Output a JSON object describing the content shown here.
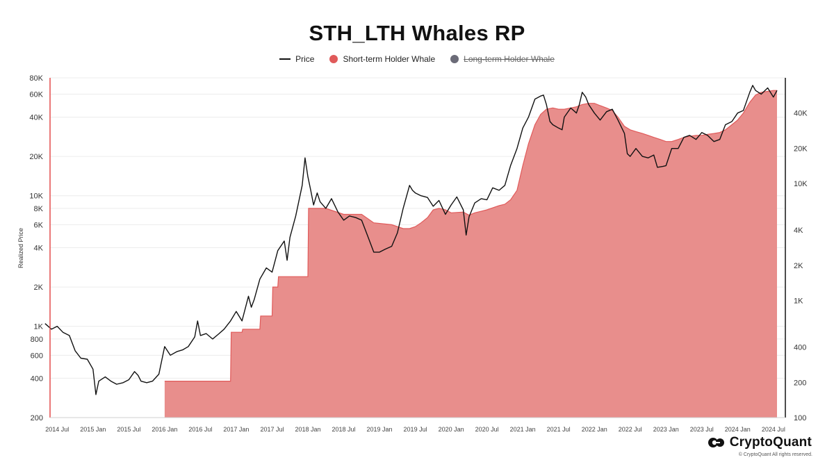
{
  "chart_data": {
    "type": "area",
    "title": "STH_LTH Whales RP",
    "ylabel": "Realized Price",
    "yscale": "log",
    "ylim_left": [
      200,
      80000
    ],
    "ylim_right": [
      100,
      80000
    ],
    "grid": true,
    "legend_position": "top-center",
    "left_ticks": [
      "80K",
      "60K",
      "40K",
      "20K",
      "10K",
      "8K",
      "6K",
      "4K",
      "2K",
      "1K",
      "800",
      "600",
      "400",
      "200"
    ],
    "left_tick_values": [
      80000,
      60000,
      40000,
      20000,
      10000,
      8000,
      6000,
      4000,
      2000,
      1000,
      800,
      600,
      400,
      200
    ],
    "right_ticks": [
      "40K",
      "20K",
      "10K",
      "4K",
      "2K",
      "1K",
      "400",
      "200",
      "100"
    ],
    "right_tick_values": [
      40000,
      20000,
      10000,
      4000,
      2000,
      1000,
      400,
      200,
      100
    ],
    "x_ticks": [
      "2014 Jul",
      "2015 Jan",
      "2015 Jul",
      "2016 Jan",
      "2016 Jul",
      "2017 Jan",
      "2017 Jul",
      "2018 Jan",
      "2018 Jul",
      "2019 Jan",
      "2019 Jul",
      "2020 Jan",
      "2020 Jul",
      "2021 Jan",
      "2021 Jul",
      "2022 Jan",
      "2022 Jul",
      "2023 Jan",
      "2023 Jul",
      "2024 Jan",
      "2024 Jul"
    ],
    "x_tick_values": [
      2014.5,
      2015.0,
      2015.5,
      2016.0,
      2016.5,
      2017.0,
      2017.5,
      2018.0,
      2018.5,
      2019.0,
      2019.5,
      2020.0,
      2020.5,
      2021.0,
      2021.5,
      2022.0,
      2022.5,
      2023.0,
      2023.5,
      2024.0,
      2024.5
    ],
    "xlim": [
      2014.4,
      2024.55
    ],
    "series": [
      {
        "name": "Price",
        "type": "line",
        "color": "#111111",
        "points": [
          [
            2014.33,
            1050
          ],
          [
            2014.42,
            950
          ],
          [
            2014.5,
            1000
          ],
          [
            2014.58,
            900
          ],
          [
            2014.67,
            850
          ],
          [
            2014.75,
            650
          ],
          [
            2014.83,
            570
          ],
          [
            2014.92,
            560
          ],
          [
            2015.0,
            470
          ],
          [
            2015.04,
            300
          ],
          [
            2015.08,
            380
          ],
          [
            2015.17,
            410
          ],
          [
            2015.25,
            380
          ],
          [
            2015.33,
            360
          ],
          [
            2015.42,
            370
          ],
          [
            2015.5,
            390
          ],
          [
            2015.58,
            450
          ],
          [
            2015.63,
            420
          ],
          [
            2015.67,
            380
          ],
          [
            2015.75,
            370
          ],
          [
            2015.83,
            380
          ],
          [
            2015.92,
            430
          ],
          [
            2016.0,
            700
          ],
          [
            2016.08,
            600
          ],
          [
            2016.17,
            640
          ],
          [
            2016.25,
            660
          ],
          [
            2016.33,
            700
          ],
          [
            2016.42,
            830
          ],
          [
            2016.46,
            1100
          ],
          [
            2016.5,
            850
          ],
          [
            2016.58,
            880
          ],
          [
            2016.67,
            800
          ],
          [
            2016.75,
            870
          ],
          [
            2016.83,
            950
          ],
          [
            2016.92,
            1100
          ],
          [
            2017.0,
            1300
          ],
          [
            2017.08,
            1100
          ],
          [
            2017.17,
            1700
          ],
          [
            2017.21,
            1400
          ],
          [
            2017.25,
            1600
          ],
          [
            2017.33,
            2300
          ],
          [
            2017.42,
            2800
          ],
          [
            2017.5,
            2600
          ],
          [
            2017.58,
            3800
          ],
          [
            2017.67,
            4500
          ],
          [
            2017.71,
            3200
          ],
          [
            2017.75,
            4800
          ],
          [
            2017.83,
            7000
          ],
          [
            2017.92,
            12000
          ],
          [
            2017.96,
            19500
          ],
          [
            2018.0,
            14000
          ],
          [
            2018.04,
            11000
          ],
          [
            2018.08,
            8500
          ],
          [
            2018.13,
            10500
          ],
          [
            2018.17,
            9000
          ],
          [
            2018.25,
            8000
          ],
          [
            2018.33,
            9500
          ],
          [
            2018.42,
            7500
          ],
          [
            2018.5,
            6500
          ],
          [
            2018.58,
            7000
          ],
          [
            2018.67,
            6800
          ],
          [
            2018.75,
            6500
          ],
          [
            2018.83,
            5000
          ],
          [
            2018.92,
            3700
          ],
          [
            2019.0,
            3700
          ],
          [
            2019.08,
            3900
          ],
          [
            2019.17,
            4100
          ],
          [
            2019.25,
            5200
          ],
          [
            2019.33,
            8000
          ],
          [
            2019.42,
            12000
          ],
          [
            2019.46,
            11000
          ],
          [
            2019.5,
            10500
          ],
          [
            2019.58,
            10000
          ],
          [
            2019.67,
            9700
          ],
          [
            2019.75,
            8300
          ],
          [
            2019.83,
            9200
          ],
          [
            2019.92,
            7200
          ],
          [
            2020.0,
            8500
          ],
          [
            2020.08,
            9800
          ],
          [
            2020.17,
            7800
          ],
          [
            2020.21,
            5000
          ],
          [
            2020.25,
            6900
          ],
          [
            2020.33,
            8800
          ],
          [
            2020.42,
            9500
          ],
          [
            2020.5,
            9300
          ],
          [
            2020.58,
            11500
          ],
          [
            2020.67,
            11000
          ],
          [
            2020.75,
            12000
          ],
          [
            2020.83,
            17000
          ],
          [
            2020.92,
            23000
          ],
          [
            2021.0,
            33000
          ],
          [
            2021.08,
            40000
          ],
          [
            2021.17,
            55000
          ],
          [
            2021.25,
            58000
          ],
          [
            2021.29,
            59000
          ],
          [
            2021.33,
            50000
          ],
          [
            2021.38,
            37000
          ],
          [
            2021.42,
            35000
          ],
          [
            2021.5,
            33000
          ],
          [
            2021.55,
            32000
          ],
          [
            2021.58,
            40000
          ],
          [
            2021.67,
            47000
          ],
          [
            2021.75,
            43000
          ],
          [
            2021.79,
            50000
          ],
          [
            2021.83,
            62000
          ],
          [
            2021.88,
            57000
          ],
          [
            2021.92,
            50000
          ],
          [
            2022.0,
            43000
          ],
          [
            2022.08,
            38000
          ],
          [
            2022.17,
            44000
          ],
          [
            2022.25,
            46000
          ],
          [
            2022.33,
            38000
          ],
          [
            2022.42,
            30000
          ],
          [
            2022.46,
            21000
          ],
          [
            2022.5,
            20000
          ],
          [
            2022.58,
            23000
          ],
          [
            2022.67,
            20000
          ],
          [
            2022.75,
            19500
          ],
          [
            2022.83,
            20500
          ],
          [
            2022.88,
            16500
          ],
          [
            2022.96,
            16800
          ],
          [
            2023.0,
            17000
          ],
          [
            2023.08,
            23000
          ],
          [
            2023.17,
            23000
          ],
          [
            2023.25,
            28000
          ],
          [
            2023.33,
            29000
          ],
          [
            2023.42,
            27000
          ],
          [
            2023.5,
            30500
          ],
          [
            2023.58,
            29000
          ],
          [
            2023.67,
            26000
          ],
          [
            2023.75,
            27000
          ],
          [
            2023.83,
            35000
          ],
          [
            2023.92,
            37000
          ],
          [
            2024.0,
            43000
          ],
          [
            2024.08,
            45000
          ],
          [
            2024.17,
            62000
          ],
          [
            2024.21,
            70000
          ],
          [
            2024.25,
            64000
          ],
          [
            2024.33,
            60000
          ],
          [
            2024.42,
            67000
          ],
          [
            2024.5,
            57000
          ],
          [
            2024.55,
            64000
          ]
        ]
      },
      {
        "name": "Short-term Holder Whale",
        "type": "area",
        "color": "#e05a5a",
        "fill": "#e88e8c",
        "points": [
          [
            2016.0,
            380
          ],
          [
            2016.92,
            380
          ],
          [
            2016.93,
            900
          ],
          [
            2017.0,
            900
          ],
          [
            2017.08,
            900
          ],
          [
            2017.09,
            950
          ],
          [
            2017.33,
            950
          ],
          [
            2017.34,
            1200
          ],
          [
            2017.5,
            1200
          ],
          [
            2017.51,
            2000
          ],
          [
            2017.58,
            2000
          ],
          [
            2017.59,
            2400
          ],
          [
            2018.0,
            2400
          ],
          [
            2018.01,
            8000
          ],
          [
            2018.25,
            8000
          ],
          [
            2018.5,
            7200
          ],
          [
            2018.75,
            7200
          ],
          [
            2018.92,
            6200
          ],
          [
            2019.17,
            6000
          ],
          [
            2019.33,
            5600
          ],
          [
            2019.42,
            5600
          ],
          [
            2019.5,
            5800
          ],
          [
            2019.58,
            6200
          ],
          [
            2019.67,
            6800
          ],
          [
            2019.75,
            7800
          ],
          [
            2019.83,
            8000
          ],
          [
            2019.92,
            7800
          ],
          [
            2020.0,
            7400
          ],
          [
            2020.17,
            7500
          ],
          [
            2020.25,
            7100
          ],
          [
            2020.33,
            7400
          ],
          [
            2020.42,
            7600
          ],
          [
            2020.5,
            7800
          ],
          [
            2020.67,
            8400
          ],
          [
            2020.75,
            8600
          ],
          [
            2020.83,
            9300
          ],
          [
            2020.92,
            11000
          ],
          [
            2021.0,
            17000
          ],
          [
            2021.08,
            25000
          ],
          [
            2021.17,
            35000
          ],
          [
            2021.25,
            42000
          ],
          [
            2021.33,
            46000
          ],
          [
            2021.42,
            47000
          ],
          [
            2021.5,
            46000
          ],
          [
            2021.58,
            46000
          ],
          [
            2021.67,
            47000
          ],
          [
            2021.75,
            48000
          ],
          [
            2021.83,
            50000
          ],
          [
            2021.92,
            51000
          ],
          [
            2022.0,
            51000
          ],
          [
            2022.08,
            49000
          ],
          [
            2022.17,
            47000
          ],
          [
            2022.25,
            45000
          ],
          [
            2022.33,
            40000
          ],
          [
            2022.42,
            34000
          ],
          [
            2022.5,
            32000
          ],
          [
            2022.58,
            31000
          ],
          [
            2022.67,
            30000
          ],
          [
            2022.75,
            29000
          ],
          [
            2022.83,
            28000
          ],
          [
            2022.92,
            27000
          ],
          [
            2023.0,
            26000
          ],
          [
            2023.08,
            26000
          ],
          [
            2023.17,
            27000
          ],
          [
            2023.25,
            28000
          ],
          [
            2023.33,
            28500
          ],
          [
            2023.42,
            29000
          ],
          [
            2023.5,
            29000
          ],
          [
            2023.58,
            29500
          ],
          [
            2023.67,
            30000
          ],
          [
            2023.75,
            30500
          ],
          [
            2023.83,
            32000
          ],
          [
            2023.92,
            35000
          ],
          [
            2024.0,
            38000
          ],
          [
            2024.08,
            43000
          ],
          [
            2024.17,
            52000
          ],
          [
            2024.25,
            59000
          ],
          [
            2024.33,
            62000
          ],
          [
            2024.42,
            63000
          ],
          [
            2024.5,
            64000
          ],
          [
            2024.55,
            64000
          ]
        ]
      },
      {
        "name": "Long-term Holder Whale",
        "color": "#6b6b78",
        "hidden": true,
        "points": []
      }
    ]
  },
  "legend": {
    "price": "Price",
    "sth": "Short-term Holder Whale",
    "lth": "Long-term Holder Whale"
  },
  "watermark": "CryptoQuant",
  "brand": {
    "name": "CryptoQuant",
    "copyright": "© CryptoQuant All rights reserved."
  },
  "colors": {
    "price": "#111111",
    "sth_line": "#e05a5a",
    "sth_fill": "#e88e8c",
    "lth": "#6b6b78",
    "left_axis": "#e34b4b",
    "right_axis": "#111111"
  }
}
